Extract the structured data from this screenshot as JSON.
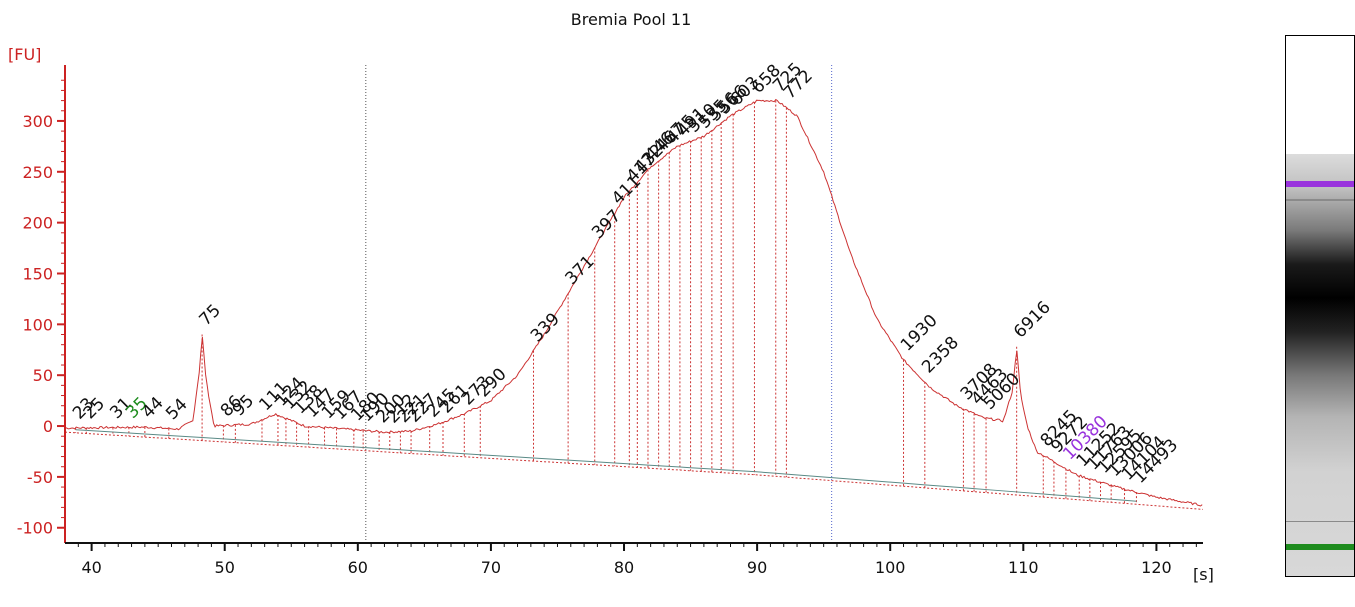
{
  "chart_data": {
    "type": "line",
    "title": "Bremia Pool 11",
    "ylabel": "[FU]",
    "xlabel": "[s]",
    "xlim": [
      38,
      123.5
    ],
    "ylim": [
      -115,
      355
    ],
    "x_ticks": [
      40,
      50,
      60,
      70,
      80,
      90,
      100,
      110,
      120
    ],
    "y_ticks": [
      -100,
      -50,
      0,
      50,
      100,
      150,
      200,
      250,
      300
    ],
    "grid": false,
    "colors": {
      "axis": "#cc2222",
      "trace": "#cc3333",
      "baseline": "#5a8a86",
      "peak_label": "#111111",
      "lower_marker": "#1e8c1e",
      "upper_marker": "#9933dd"
    },
    "vlines": [
      60.6,
      95.6
    ],
    "series": [
      {
        "values_x": [
          38.0,
          44.0,
          46.5,
          47.6,
          48.1,
          48.3,
          48.6,
          49.2,
          52.0,
          53.8,
          56.0,
          60.0,
          62.0,
          64.0,
          66.0,
          68.0,
          70.0,
          72.0,
          74.0,
          76.0,
          78.0,
          80.0,
          82.0,
          84.0,
          86.0,
          88.0,
          90.0,
          91.5,
          93.0,
          95.0,
          97.0,
          99.0,
          101.0,
          103.0,
          105.0,
          107.0,
          108.5,
          109.2,
          109.5,
          109.8,
          110.3,
          111.0,
          114.0,
          117.0,
          120.0,
          123.5
        ],
        "values_y": [
          -2,
          -1,
          -3,
          5,
          55,
          90,
          45,
          0,
          2,
          12,
          0,
          -4,
          -6,
          -5,
          2,
          12,
          25,
          50,
          90,
          135,
          180,
          225,
          255,
          275,
          285,
          305,
          320,
          320,
          305,
          250,
          170,
          105,
          65,
          38,
          20,
          8,
          5,
          35,
          78,
          30,
          0,
          -25,
          -48,
          -60,
          -70,
          -78
        ]
      }
    ],
    "baseline": {
      "x": [
        38,
        90,
        123.5
      ],
      "y": [
        -3,
        -45,
        -79
      ]
    },
    "peaks": [
      {
        "x": 38.8,
        "label": "23"
      },
      {
        "x": 39.6,
        "label": "25"
      },
      {
        "x": 41.6,
        "label": "31"
      },
      {
        "x": 42.8,
        "label": "35",
        "role": "lower_marker"
      },
      {
        "x": 44.0,
        "label": "44"
      },
      {
        "x": 45.8,
        "label": "54"
      },
      {
        "x": 48.3,
        "label": "75"
      },
      {
        "x": 49.9,
        "label": "86"
      },
      {
        "x": 50.8,
        "label": "95"
      },
      {
        "x": 52.8,
        "label": "111"
      },
      {
        "x": 54.0,
        "label": "124"
      },
      {
        "x": 54.6,
        "label": "132"
      },
      {
        "x": 55.4,
        "label": "138"
      },
      {
        "x": 56.3,
        "label": "147"
      },
      {
        "x": 57.5,
        "label": "159"
      },
      {
        "x": 58.4,
        "label": "167"
      },
      {
        "x": 59.7,
        "label": "180"
      },
      {
        "x": 60.4,
        "label": "190"
      },
      {
        "x": 61.6,
        "label": "200"
      },
      {
        "x": 62.4,
        "label": "212"
      },
      {
        "x": 63.2,
        "label": "221"
      },
      {
        "x": 64.0,
        "label": "227"
      },
      {
        "x": 65.4,
        "label": "245"
      },
      {
        "x": 66.4,
        "label": "261"
      },
      {
        "x": 68.0,
        "label": "273"
      },
      {
        "x": 69.2,
        "label": "290"
      },
      {
        "x": 73.2,
        "label": "339"
      },
      {
        "x": 75.8,
        "label": "371"
      },
      {
        "x": 77.8,
        "label": "397"
      },
      {
        "x": 79.3,
        "label": "411"
      },
      {
        "x": 80.4,
        "label": "417"
      },
      {
        "x": 81.0,
        "label": "432"
      },
      {
        "x": 81.8,
        "label": "446"
      },
      {
        "x": 82.6,
        "label": "467"
      },
      {
        "x": 83.4,
        "label": "475"
      },
      {
        "x": 84.2,
        "label": "491"
      },
      {
        "x": 85.0,
        "label": "510"
      },
      {
        "x": 85.8,
        "label": "535"
      },
      {
        "x": 86.6,
        "label": "556"
      },
      {
        "x": 87.3,
        "label": "566"
      },
      {
        "x": 88.2,
        "label": "603"
      },
      {
        "x": 89.8,
        "label": "658"
      },
      {
        "x": 91.4,
        "label": "725"
      },
      {
        "x": 92.2,
        "label": "772"
      },
      {
        "x": 101.0,
        "label": "1930"
      },
      {
        "x": 102.6,
        "label": "2358"
      },
      {
        "x": 105.5,
        "label": "3708"
      },
      {
        "x": 106.3,
        "label": "4463"
      },
      {
        "x": 107.2,
        "label": "5060"
      },
      {
        "x": 109.5,
        "label": "6916"
      },
      {
        "x": 111.5,
        "label": "8245"
      },
      {
        "x": 112.3,
        "label": "9272"
      },
      {
        "x": 113.2,
        "label": "10380",
        "role": "upper_marker"
      },
      {
        "x": 114.2,
        "label": "11252"
      },
      {
        "x": 115.0,
        "label": "11763"
      },
      {
        "x": 115.8,
        "label": "12595"
      },
      {
        "x": 116.6,
        "label": "13006"
      },
      {
        "x": 117.6,
        "label": "14104"
      },
      {
        "x": 118.5,
        "label": "14493"
      }
    ]
  },
  "gel": {
    "stops": [
      [
        0.0,
        "#dcdcdc"
      ],
      [
        0.08,
        "#c0c0c0"
      ],
      [
        0.18,
        "#7a7a7a"
      ],
      [
        0.26,
        "#1a1a1a"
      ],
      [
        0.34,
        "#000000"
      ],
      [
        0.42,
        "#222222"
      ],
      [
        0.52,
        "#777777"
      ],
      [
        0.62,
        "#b4b4b4"
      ],
      [
        0.75,
        "#d2d2d2"
      ],
      [
        1.0,
        "#d8d8d8"
      ]
    ],
    "upper_marker_color": "#9933dd",
    "lower_marker_color": "#1e8c1e"
  }
}
